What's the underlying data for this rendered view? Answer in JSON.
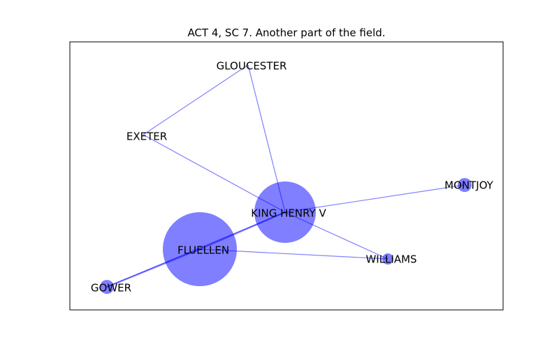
{
  "title": "ACT 4, SC 7. Another part of the field.",
  "colors": {
    "node": "#0000ff",
    "edge": "#0000ff",
    "frame": "#000000",
    "background": "#ffffff"
  },
  "graph": {
    "nodes": [
      {
        "id": "gloucester",
        "label": "GLOUCESTER",
        "weight": 0
      },
      {
        "id": "exeter",
        "label": "EXETER",
        "weight": 0
      },
      {
        "id": "montjoy",
        "label": "MONTJOY",
        "weight": 1
      },
      {
        "id": "king-henry-v",
        "label": "KING HENRY V",
        "weight": 9
      },
      {
        "id": "fluellen",
        "label": "FLUELLEN",
        "weight": 14
      },
      {
        "id": "williams",
        "label": "WILLIAMS",
        "weight": 0.6
      },
      {
        "id": "gower",
        "label": "GOWER",
        "weight": 1
      }
    ],
    "edges": [
      {
        "source": "gloucester",
        "target": "exeter",
        "weight": 1
      },
      {
        "source": "gloucester",
        "target": "king-henry-v",
        "weight": 1
      },
      {
        "source": "exeter",
        "target": "king-henry-v",
        "weight": 1
      },
      {
        "source": "king-henry-v",
        "target": "montjoy",
        "weight": 1
      },
      {
        "source": "king-henry-v",
        "target": "williams",
        "weight": 1
      },
      {
        "source": "king-henry-v",
        "target": "fluellen",
        "weight": 2
      },
      {
        "source": "king-henry-v",
        "target": "gower",
        "weight": 1
      },
      {
        "source": "fluellen",
        "target": "williams",
        "weight": 1
      },
      {
        "source": "fluellen",
        "target": "gower",
        "weight": 2
      }
    ]
  }
}
